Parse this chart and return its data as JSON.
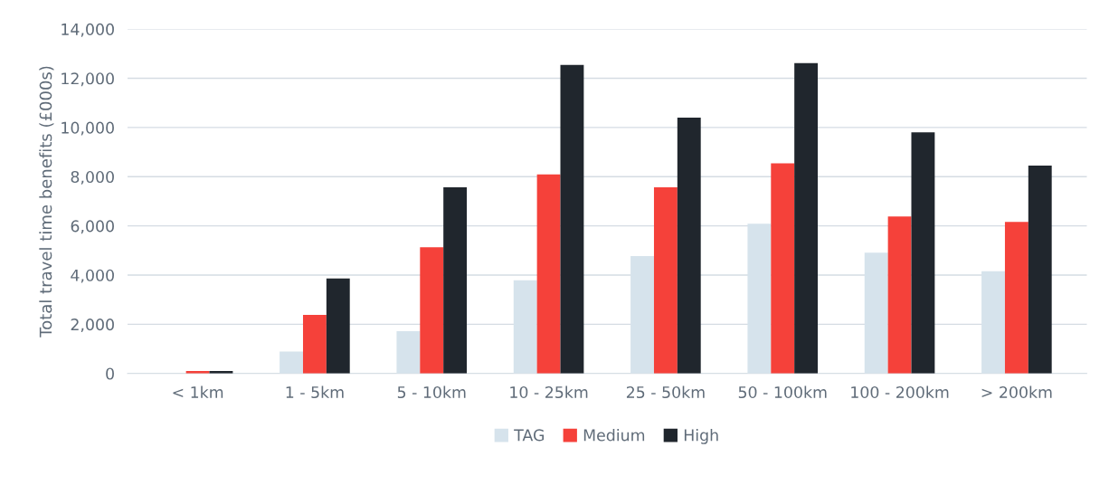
{
  "chart_data": {
    "type": "bar",
    "ylabel": "Total travel time benefits (£000s)",
    "categories": [
      "< 1km",
      "1 - 5km",
      "5 - 10km",
      "10 - 25km",
      "25 - 50km",
      "50 - 100km",
      "100 - 200km",
      "> 200km"
    ],
    "series": [
      {
        "name": "TAG",
        "color": "#d6e3ec",
        "values": [
          null,
          890,
          1720,
          3790,
          4770,
          6090,
          4910,
          4160
        ]
      },
      {
        "name": "Medium",
        "color": "#f5413a",
        "values": [
          100,
          2380,
          5130,
          8090,
          7570,
          8540,
          6380,
          6160
        ]
      },
      {
        "name": "High",
        "color": "#20262d",
        "values": [
          100,
          3860,
          7570,
          12540,
          10400,
          12620,
          9800,
          8450
        ]
      }
    ],
    "ylim": [
      0,
      14000
    ],
    "yticks": [
      {
        "value": 0,
        "label": "0"
      },
      {
        "value": 2000,
        "label": "2,000"
      },
      {
        "value": 4000,
        "label": "4,000"
      },
      {
        "value": 6000,
        "label": "6,000"
      },
      {
        "value": 8000,
        "label": "8,000"
      },
      {
        "value": 10000,
        "label": "10,000"
      },
      {
        "value": 12000,
        "label": "12,000"
      },
      {
        "value": 14000,
        "label": "14,000"
      }
    ],
    "grid": "y",
    "legend": "bottom"
  }
}
